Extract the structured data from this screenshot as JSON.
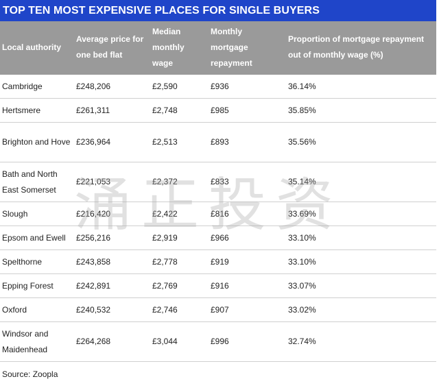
{
  "title": "TOP TEN MOST EXPENSIVE PLACES FOR SINGLE BUYERS",
  "headers": [
    "Local authority",
    "Average price for one bed flat",
    "Median monthly wage",
    "Monthly mortgage repayment",
    "Proportion of mortgage repayment out of monthly wage (%)"
  ],
  "rows": [
    [
      "Cambridge",
      "£248,206",
      "£2,590",
      "£936",
      "36.14%"
    ],
    [
      "Hertsmere",
      "£261,311",
      "£2,748",
      "£985",
      "35.85%"
    ],
    [
      "Brighton and Hove",
      "£236,964",
      "£2,513",
      "£893",
      "35.56%"
    ],
    [
      "Bath and North East Somerset",
      "£221,053",
      "£2,372",
      "£833",
      "35.14%"
    ],
    [
      "Slough",
      "£216,420",
      "£2,422",
      "£816",
      "33.69%"
    ],
    [
      "Epsom and Ewell",
      "£256,216",
      "£2,919",
      "£966",
      "33.10%"
    ],
    [
      "Spelthorne",
      "£243,858",
      "£2,778",
      "£919",
      "33.10%"
    ],
    [
      "Epping Forest",
      "£242,891",
      "£2,769",
      "£916",
      "33.07%"
    ],
    [
      "Oxford",
      "£240,532",
      "£2,746",
      "£907",
      "33.02%"
    ],
    [
      "Windsor and Maidenhead",
      "£264,268",
      "£3,044",
      "£996",
      "32.74%"
    ]
  ],
  "source": "Source: Zoopla",
  "watermark": "涌正投资"
}
